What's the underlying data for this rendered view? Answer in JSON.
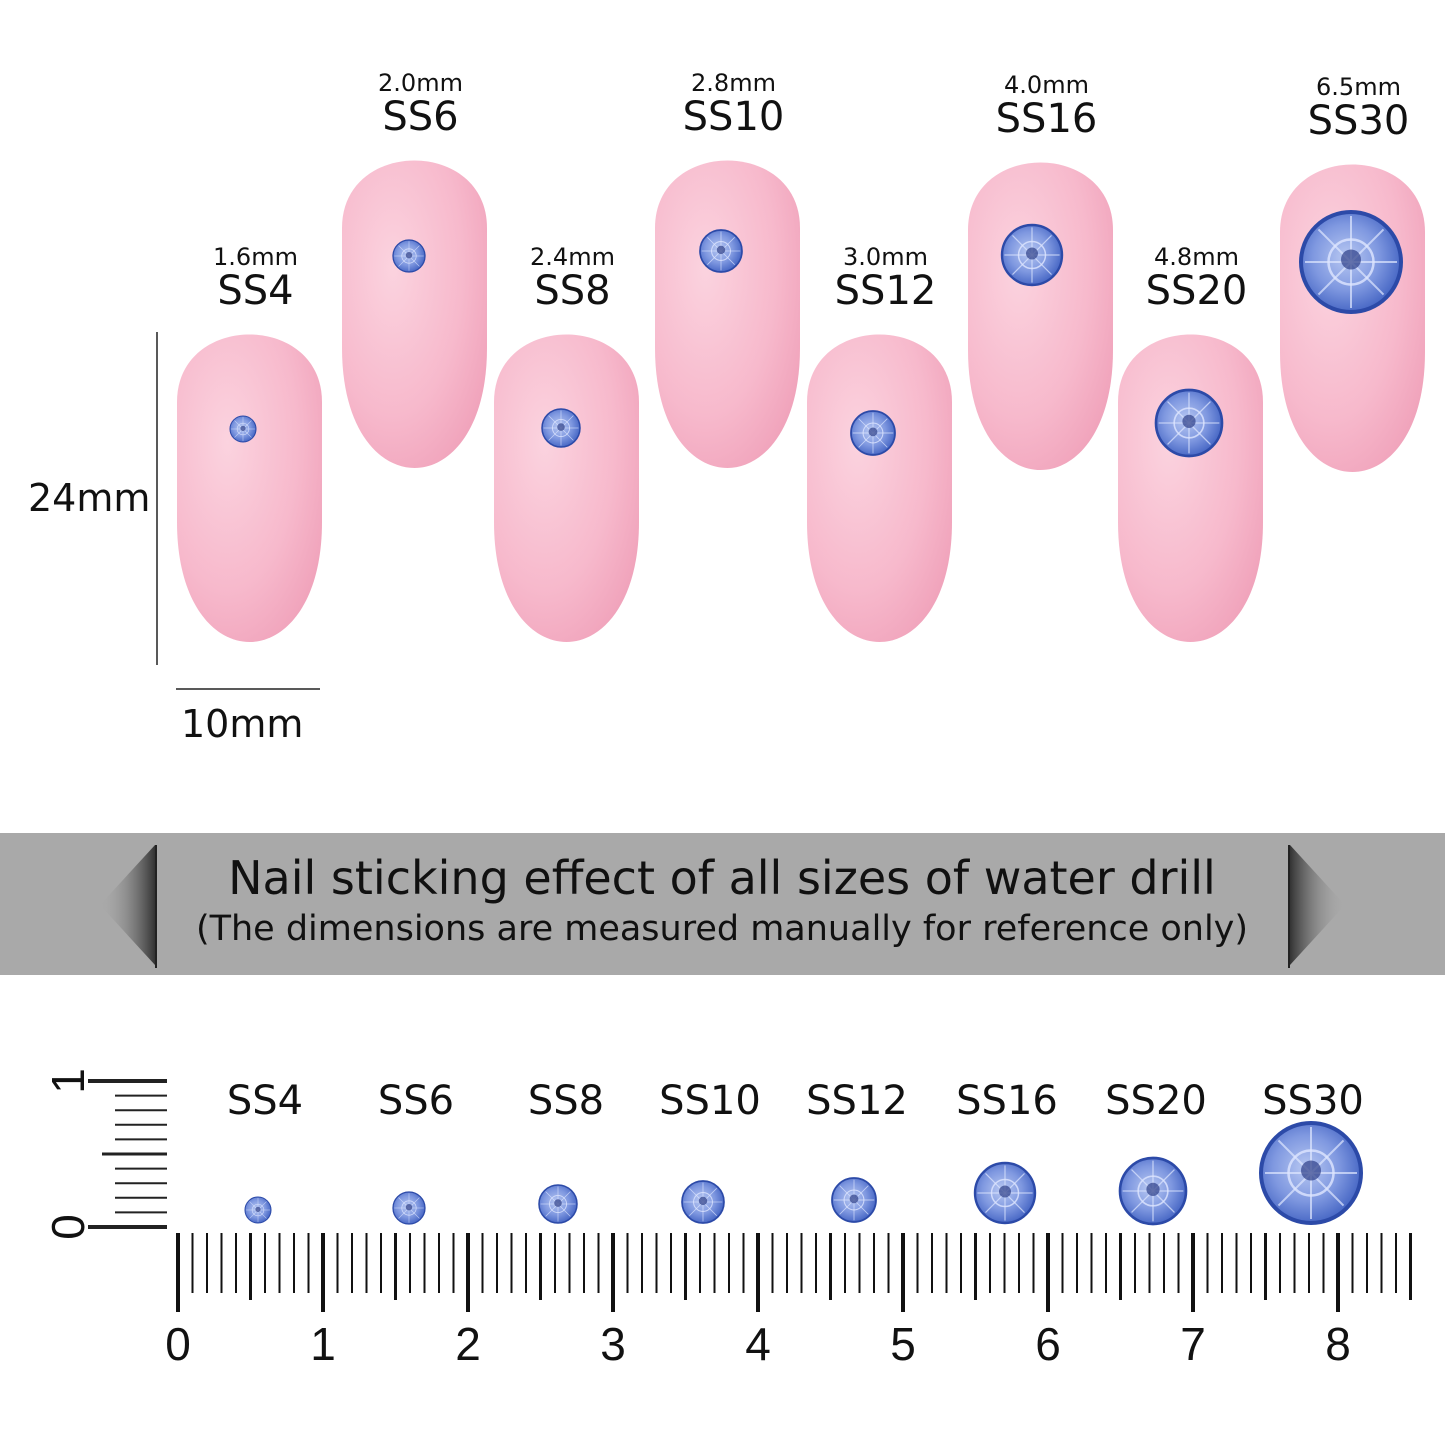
{
  "nails": [
    {
      "size": "SS4",
      "mm": "1.6mm"
    },
    {
      "size": "SS6",
      "mm": "2.0mm"
    },
    {
      "size": "SS8",
      "mm": "2.4mm"
    },
    {
      "size": "SS10",
      "mm": "2.8mm"
    },
    {
      "size": "SS12",
      "mm": "3.0mm"
    },
    {
      "size": "SS16",
      "mm": "4.0mm"
    },
    {
      "size": "SS20",
      "mm": "4.8mm"
    },
    {
      "size": "SS30",
      "mm": "6.5mm"
    }
  ],
  "nail_height_label": "24mm",
  "nail_width_label": "10mm",
  "banner": {
    "title": "Nail sticking effect of all sizes of water drill",
    "subtitle": "(The dimensions are measured manually for reference only)"
  },
  "ruler": {
    "labels": [
      "0",
      "1",
      "2",
      "3",
      "4",
      "5",
      "6",
      "7",
      "8"
    ],
    "vertical_labels": [
      "0",
      "1"
    ]
  },
  "colors": {
    "nail": "#f7b8cc",
    "gem": "#5f7fd6",
    "banner": "#a9a9a9"
  }
}
